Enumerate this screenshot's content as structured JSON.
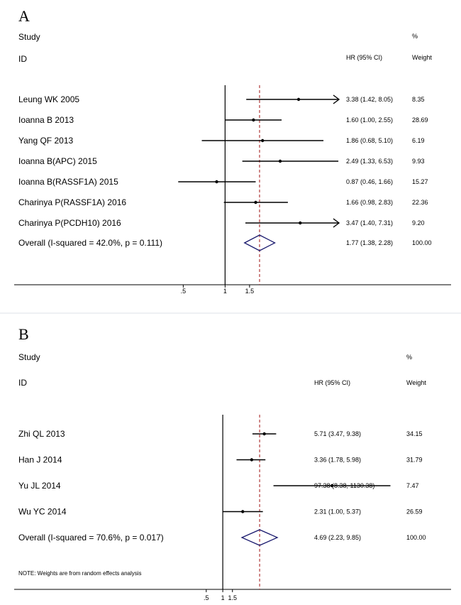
{
  "chart_data": [
    {
      "type": "forest",
      "panel_label": "A",
      "column_headers": {
        "study_line1": "Study",
        "study_line2": "ID",
        "effect": "HR (95% CI)",
        "weight_line1": "%",
        "weight_line2": "Weight"
      },
      "studies": [
        {
          "id": "Leung WK 2005",
          "hr": 3.38,
          "lo": 1.42,
          "hi": 8.05,
          "hr_text": "3.38 (1.42, 8.05)",
          "weight": "8.35",
          "arrow": true
        },
        {
          "id": "Ioanna B 2013",
          "hr": 1.6,
          "lo": 1.0,
          "hi": 2.55,
          "hr_text": "1.60 (1.00, 2.55)",
          "weight": "28.69"
        },
        {
          "id": "Yang QF 2013",
          "hr": 1.86,
          "lo": 0.68,
          "hi": 5.1,
          "hr_text": "1.86 (0.68, 5.10)",
          "weight": "6.19"
        },
        {
          "id": "Ioanna B(APC) 2015",
          "hr": 2.49,
          "lo": 1.33,
          "hi": 6.53,
          "hr_text": "2.49 (1.33, 6.53)",
          "weight": "9.93"
        },
        {
          "id": "Ioanna B(RASSF1A) 2015",
          "hr": 0.87,
          "lo": 0.46,
          "hi": 1.66,
          "hr_text": "0.87 (0.46, 1.66)",
          "weight": "15.27"
        },
        {
          "id": "Charinya P(RASSF1A)  2016",
          "hr": 1.66,
          "lo": 0.98,
          "hi": 2.83,
          "hr_text": "1.66 (0.98, 2.83)",
          "weight": "22.36"
        },
        {
          "id": "Charinya P(PCDH10)  2016",
          "hr": 3.47,
          "lo": 1.4,
          "hi": 7.31,
          "hr_text": "3.47 (1.40, 7.31)",
          "weight": "9.20"
        }
      ],
      "overall": {
        "label": "Overall  (I-squared = 42.0%, p = 0.111)",
        "hr": 1.77,
        "lo": 1.38,
        "hi": 2.28,
        "hr_text": "1.77 (1.38, 2.28)",
        "weight": "100.00"
      },
      "x_ticks": [
        0.5,
        1,
        1.5
      ],
      "x_tick_labels": [
        ".5",
        "1",
        "1.5"
      ],
      "reference_line": 1,
      "x_range": [
        0.35,
        6.6
      ],
      "colors": {
        "line": "#000000",
        "diamond": "#1a1a6e",
        "overall_line": "#b03a3a"
      }
    },
    {
      "type": "forest",
      "panel_label": "B",
      "column_headers": {
        "study_line1": "Study",
        "study_line2": "ID",
        "effect": "HR (95% CI)",
        "weight_line1": "%",
        "weight_line2": "Weight"
      },
      "studies": [
        {
          "id": "Zhi QL 2013",
          "hr": 5.71,
          "lo": 3.47,
          "hi": 9.38,
          "hr_text": "5.71 (3.47, 9.38)",
          "weight": "34.15"
        },
        {
          "id": "Han J 2014",
          "hr": 3.36,
          "lo": 1.78,
          "hi": 5.98,
          "hr_text": "3.36 (1.78, 5.98)",
          "weight": "31.79"
        },
        {
          "id": "Yu JL 2014",
          "hr": 97.38,
          "lo": 8.38,
          "hi": 1130.38,
          "hr_text": "97.38 (8.38, 1130.38)",
          "weight": "7.47"
        },
        {
          "id": "Wu YC 2014",
          "hr": 2.31,
          "lo": 1.0,
          "hi": 5.37,
          "hr_text": "2.31 (1.00, 5.37)",
          "weight": "26.59"
        }
      ],
      "overall": {
        "label": "Overall  (I-squared = 70.6%, p = 0.017)",
        "hr": 4.69,
        "lo": 2.23,
        "hi": 9.85,
        "hr_text": "4.69 (2.23, 9.85)",
        "weight": "100.00"
      },
      "note": "NOTE: Weights are from random effects analysis",
      "x_ticks": [
        0.5,
        1,
        1.5
      ],
      "x_tick_labels": [
        ".5",
        "1",
        "1.5"
      ],
      "reference_line": 1,
      "x_range": [
        0.2,
        1500
      ],
      "colors": {
        "line": "#000000",
        "diamond": "#1a1a6e",
        "overall_line": "#b03a3a"
      }
    }
  ]
}
